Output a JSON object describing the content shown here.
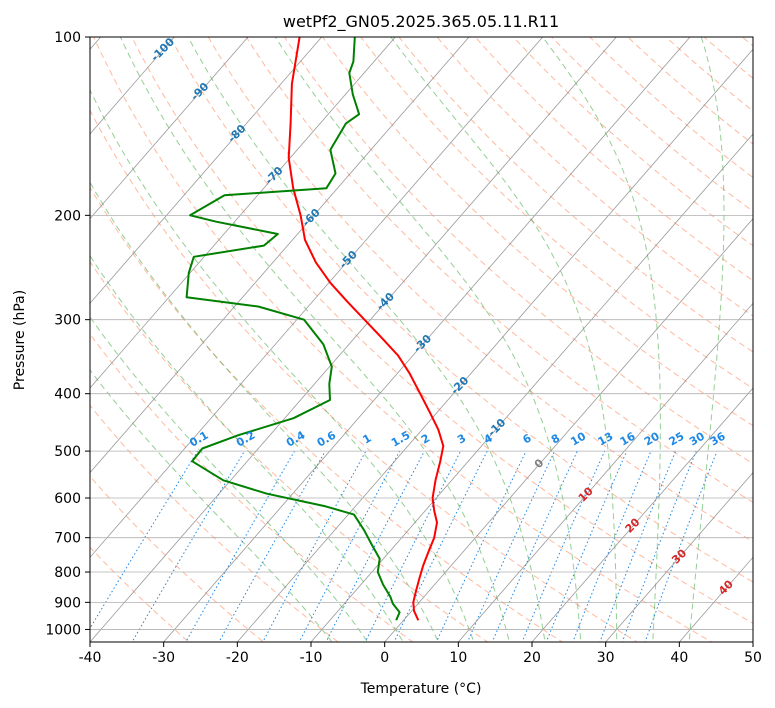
{
  "chart_data": {
    "type": "line",
    "subtype": "skew-t",
    "title": "wetPf2_GN05.2025.365.05.11.R11",
    "xlabel": "Temperature (°C)",
    "ylabel": "Pressure (hPa)",
    "xlim": [
      -40,
      50
    ],
    "ylim": [
      1050,
      100
    ],
    "y_scale": "log",
    "grid": true,
    "x_ticks": [
      -40,
      -30,
      -20,
      -10,
      0,
      10,
      20,
      30,
      40,
      50
    ],
    "y_ticks": [
      1000,
      900,
      800,
      700,
      600,
      500,
      400,
      300,
      200,
      100
    ],
    "colors": {
      "temperature": "#ff0000",
      "dewpoint": "#008000",
      "dry_adiabat": "#ff7f50",
      "moist_adiabat": "#2ca02c",
      "mixing_ratio": "#1e88e5",
      "isotherm": "#808080",
      "isotherm_label": "#1f77b4",
      "warm_label": "#d62728"
    },
    "series": [
      {
        "points": [
          {
            "p": 965,
            "t": 2.0
          },
          {
            "p": 930,
            "t": 0.3
          },
          {
            "p": 900,
            "t": -0.8
          },
          {
            "p": 860,
            "t": -1.8
          },
          {
            "p": 820,
            "t": -2.8
          },
          {
            "p": 780,
            "t": -3.8
          },
          {
            "p": 740,
            "t": -4.7
          },
          {
            "p": 700,
            "t": -5.6
          },
          {
            "p": 660,
            "t": -7.0
          },
          {
            "p": 630,
            "t": -8.8
          },
          {
            "p": 600,
            "t": -10.5
          },
          {
            "p": 560,
            "t": -12.2
          },
          {
            "p": 520,
            "t": -13.8
          },
          {
            "p": 490,
            "t": -15.2
          },
          {
            "p": 460,
            "t": -17.8
          },
          {
            "p": 430,
            "t": -21.0
          },
          {
            "p": 400,
            "t": -24.5
          },
          {
            "p": 370,
            "t": -28.3
          },
          {
            "p": 345,
            "t": -32.0
          },
          {
            "p": 320,
            "t": -36.7
          },
          {
            "p": 300,
            "t": -40.8
          },
          {
            "p": 280,
            "t": -45.2
          },
          {
            "p": 260,
            "t": -49.8
          },
          {
            "p": 240,
            "t": -54.2
          },
          {
            "p": 220,
            "t": -58.3
          },
          {
            "p": 200,
            "t": -61.8
          },
          {
            "p": 180,
            "t": -66.0
          },
          {
            "p": 160,
            "t": -70.2
          },
          {
            "p": 140,
            "t": -74.0
          },
          {
            "p": 120,
            "t": -78.5
          },
          {
            "p": 100,
            "t": -83.0
          }
        ]
      },
      {
        "points": [
          {
            "p": 965,
            "t": -1.0
          },
          {
            "p": 935,
            "t": -1.5
          },
          {
            "p": 905,
            "t": -3.4
          },
          {
            "p": 880,
            "t": -4.6
          },
          {
            "p": 840,
            "t": -7.0
          },
          {
            "p": 800,
            "t": -9.2
          },
          {
            "p": 760,
            "t": -10.5
          },
          {
            "p": 720,
            "t": -13.2
          },
          {
            "p": 680,
            "t": -16.0
          },
          {
            "p": 640,
            "t": -19.2
          },
          {
            "p": 620,
            "t": -24.0
          },
          {
            "p": 590,
            "t": -33.5
          },
          {
            "p": 560,
            "t": -41.0
          },
          {
            "p": 520,
            "t": -47.5
          },
          {
            "p": 495,
            "t": -47.6
          },
          {
            "p": 470,
            "t": -44.3
          },
          {
            "p": 440,
            "t": -38.8
          },
          {
            "p": 410,
            "t": -36.0
          },
          {
            "p": 385,
            "t": -38.0
          },
          {
            "p": 360,
            "t": -39.7
          },
          {
            "p": 330,
            "t": -43.5
          },
          {
            "p": 300,
            "t": -49.0
          },
          {
            "p": 285,
            "t": -56.8
          },
          {
            "p": 275,
            "t": -67.6
          },
          {
            "p": 250,
            "t": -70.2
          },
          {
            "p": 235,
            "t": -71.4
          },
          {
            "p": 225,
            "t": -63.2
          },
          {
            "p": 215,
            "t": -62.7
          },
          {
            "p": 205,
            "t": -72.5
          },
          {
            "p": 200,
            "t": -76.8
          },
          {
            "p": 185,
            "t": -74.5
          },
          {
            "p": 180,
            "t": -61.5
          },
          {
            "p": 170,
            "t": -62.0
          },
          {
            "p": 155,
            "t": -65.5
          },
          {
            "p": 140,
            "t": -66.5
          },
          {
            "p": 135,
            "t": -65.8
          },
          {
            "p": 125,
            "t": -69.0
          },
          {
            "p": 115,
            "t": -72.0
          },
          {
            "p": 110,
            "t": -72.8
          },
          {
            "p": 100,
            "t": -75.5
          }
        ]
      }
    ],
    "isotherm_labels": [
      {
        "text": "-100",
        "t": -100
      },
      {
        "text": "-90",
        "t": -90
      },
      {
        "text": "-80",
        "t": -80
      },
      {
        "text": "-70",
        "t": -70
      },
      {
        "text": "-60",
        "t": -60
      },
      {
        "text": "-50",
        "t": -50
      },
      {
        "text": "-40",
        "t": -40
      },
      {
        "text": "-30",
        "t": -30
      },
      {
        "text": "-20",
        "t": -20
      },
      {
        "text": "-10",
        "t": -10
      }
    ],
    "warm_isotherm_labels": [
      {
        "text": "0",
        "t": 0
      },
      {
        "text": "10",
        "t": 10
      },
      {
        "text": "20",
        "t": 20
      },
      {
        "text": "30",
        "t": 30
      },
      {
        "text": "40",
        "t": 40
      }
    ],
    "mixing_ratio_labels": [
      "0.1",
      "0.2",
      "0.4",
      "0.6",
      "1",
      "1.5",
      "2",
      "3",
      "4",
      "6",
      "8",
      "10",
      "13",
      "16",
      "20",
      "25",
      "30",
      "36"
    ],
    "mixing_ratio_values": [
      0.1,
      0.2,
      0.4,
      0.6,
      1,
      1.5,
      2,
      3,
      4,
      6,
      8,
      10,
      13,
      16,
      20,
      25,
      30,
      36
    ]
  }
}
